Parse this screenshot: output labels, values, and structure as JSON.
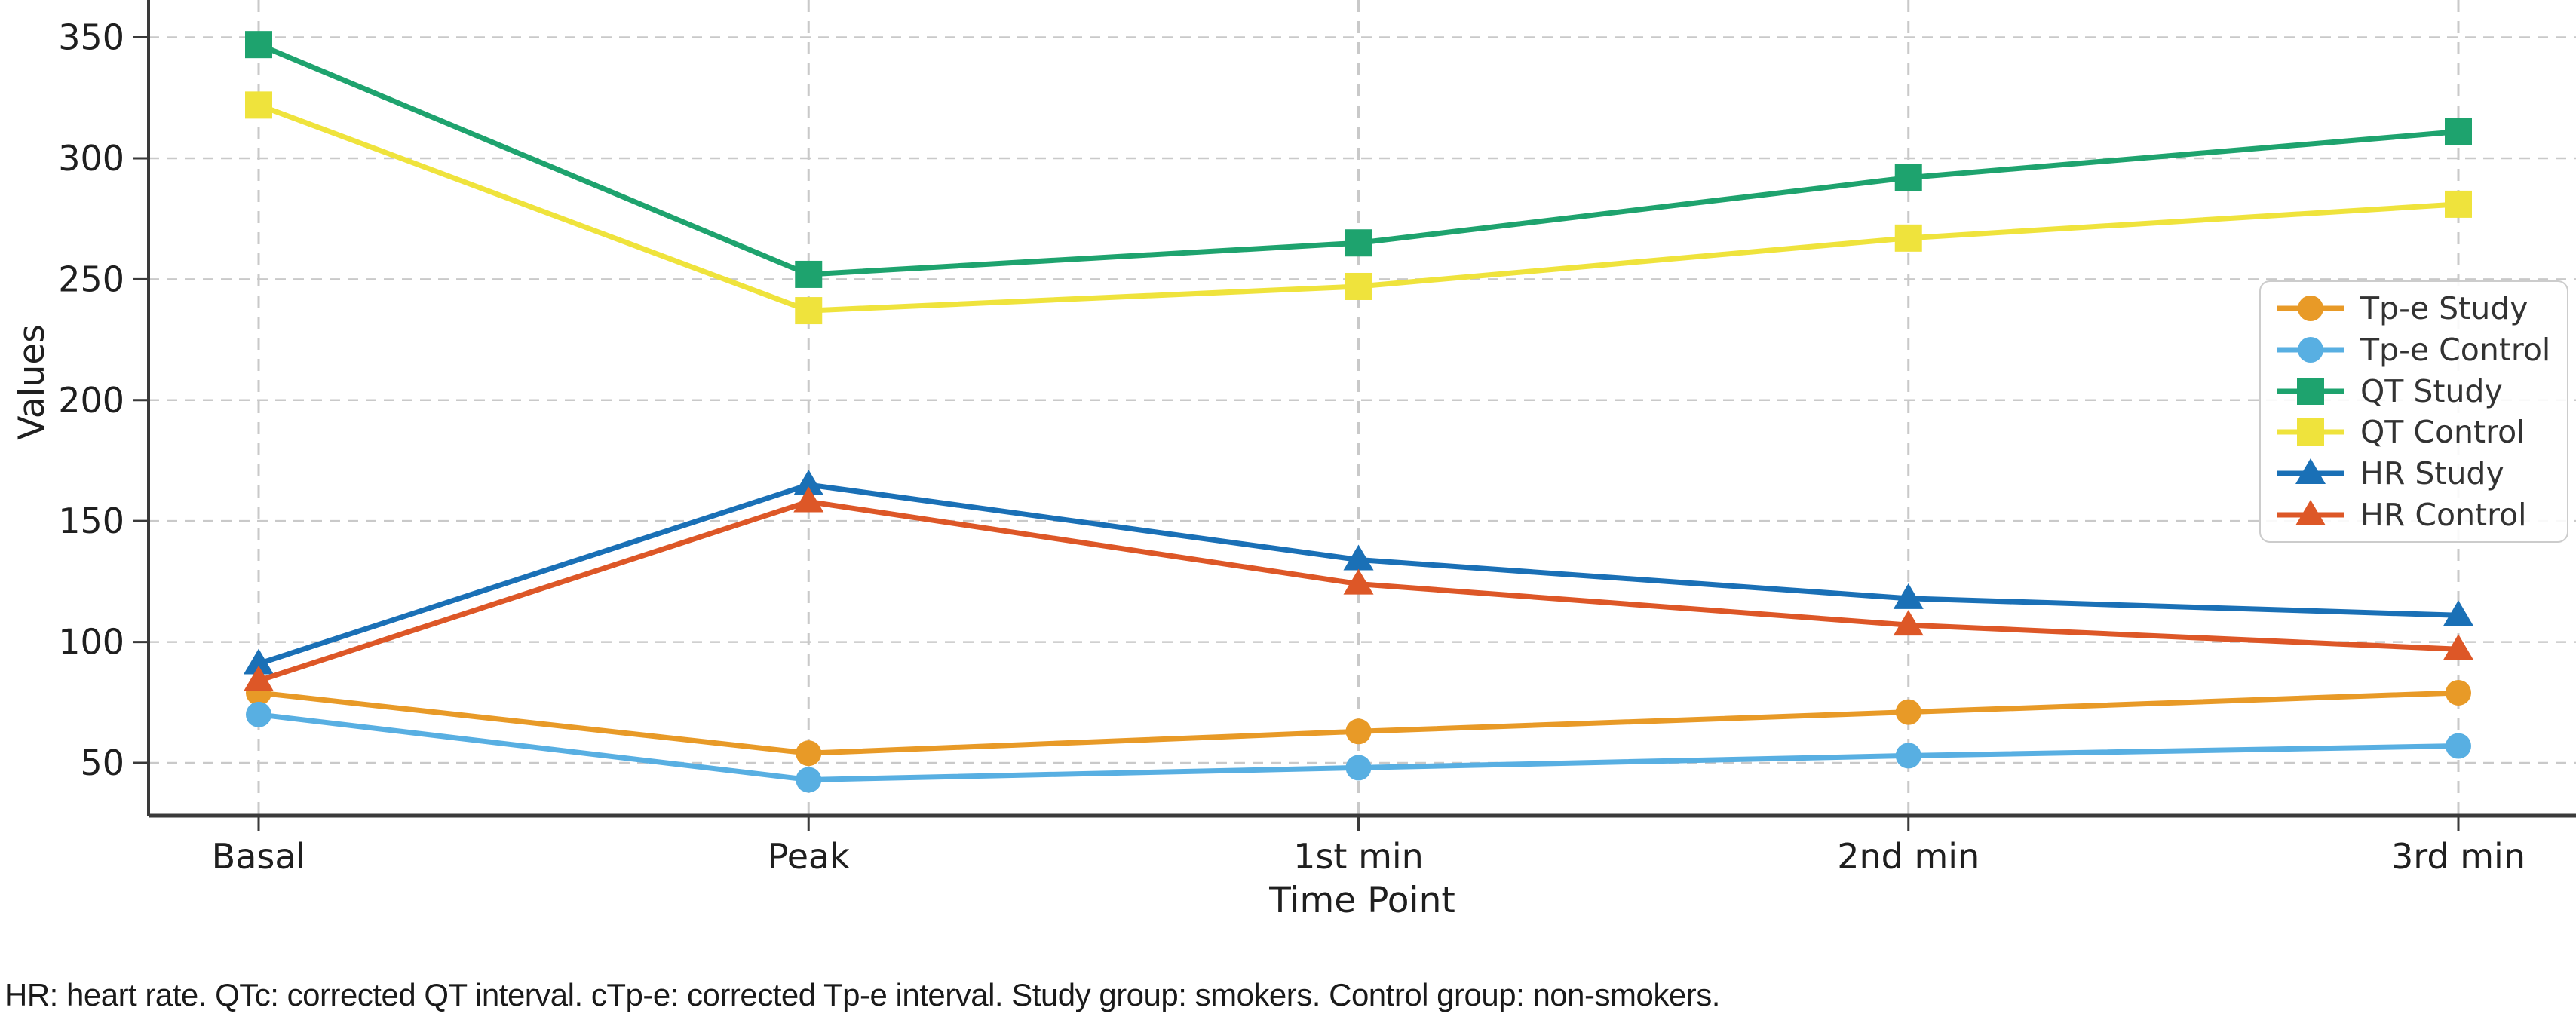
{
  "figure": {
    "footnote": "HR: heart rate. QTc: corrected QT interval. cTp-e: corrected Tp-e interval. Study group: smokers. Control group: non-smokers."
  },
  "chart_data": {
    "type": "line",
    "title": "",
    "xlabel": "Time Point",
    "ylabel": "Values",
    "categories": [
      "Basal",
      "Peak",
      "1st min",
      "2nd min",
      "3rd min"
    ],
    "yticks": [
      50,
      100,
      150,
      200,
      250,
      300,
      350
    ],
    "ylim": [
      25,
      366
    ],
    "grid": true,
    "grid_style": "dashed",
    "legend_position": "center right",
    "axis_color": "#3a3a3a",
    "grid_color": "#c9c9c9",
    "series": [
      {
        "name": "Tp-e Study",
        "color": "#E89A27",
        "marker": "circle",
        "values": [
          79,
          54,
          63,
          71,
          79
        ]
      },
      {
        "name": "Tp-e Control",
        "color": "#58AFE2",
        "marker": "circle",
        "values": [
          70,
          43,
          48,
          53,
          57
        ]
      },
      {
        "name": "QT Study",
        "color": "#1EA36E",
        "marker": "square",
        "values": [
          347,
          252,
          265,
          292,
          311
        ]
      },
      {
        "name": "QT Control",
        "color": "#EFE33C",
        "marker": "square",
        "values": [
          322,
          237,
          247,
          267,
          281
        ]
      },
      {
        "name": "HR Study",
        "color": "#1A70B6",
        "marker": "triangle",
        "values": [
          91,
          165,
          134,
          118,
          111
        ]
      },
      {
        "name": "HR Control",
        "color": "#DD5727",
        "marker": "triangle",
        "values": [
          84,
          158,
          124,
          107,
          97
        ]
      }
    ]
  }
}
